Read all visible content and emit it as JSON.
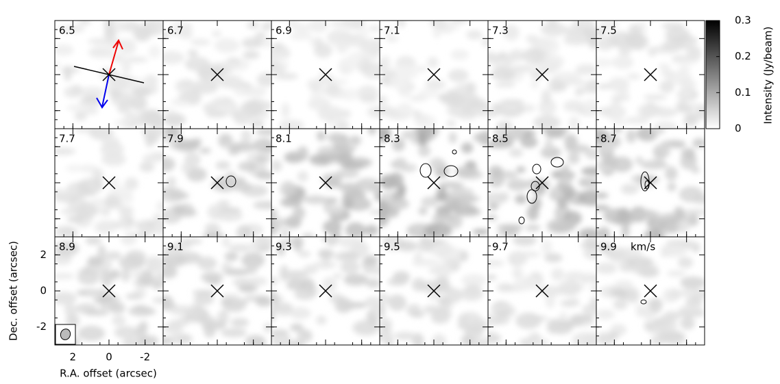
{
  "chart_data": {
    "type": "channel-map",
    "channels": [
      6.5,
      6.7,
      6.9,
      7.1,
      7.3,
      7.5,
      7.7,
      7.9,
      8.1,
      8.3,
      8.5,
      8.7,
      8.9,
      9.1,
      9.3,
      9.5,
      9.7,
      9.9
    ],
    "velocity_unit": "km/s",
    "xlabel": "R.A. offset (arcsec)",
    "ylabel": "Dec. offset (arcsec)",
    "xlim": [
      3,
      -3
    ],
    "ylim": [
      -3,
      3
    ],
    "xticks": [
      2,
      0,
      -2
    ],
    "yticks": [
      2,
      0,
      -2
    ],
    "colorbar": {
      "label": "Intensity (Jy/beam)",
      "lim": [
        0,
        0.3
      ],
      "ticks": [
        0,
        0.1,
        0.2,
        0.3
      ]
    }
  }
}
